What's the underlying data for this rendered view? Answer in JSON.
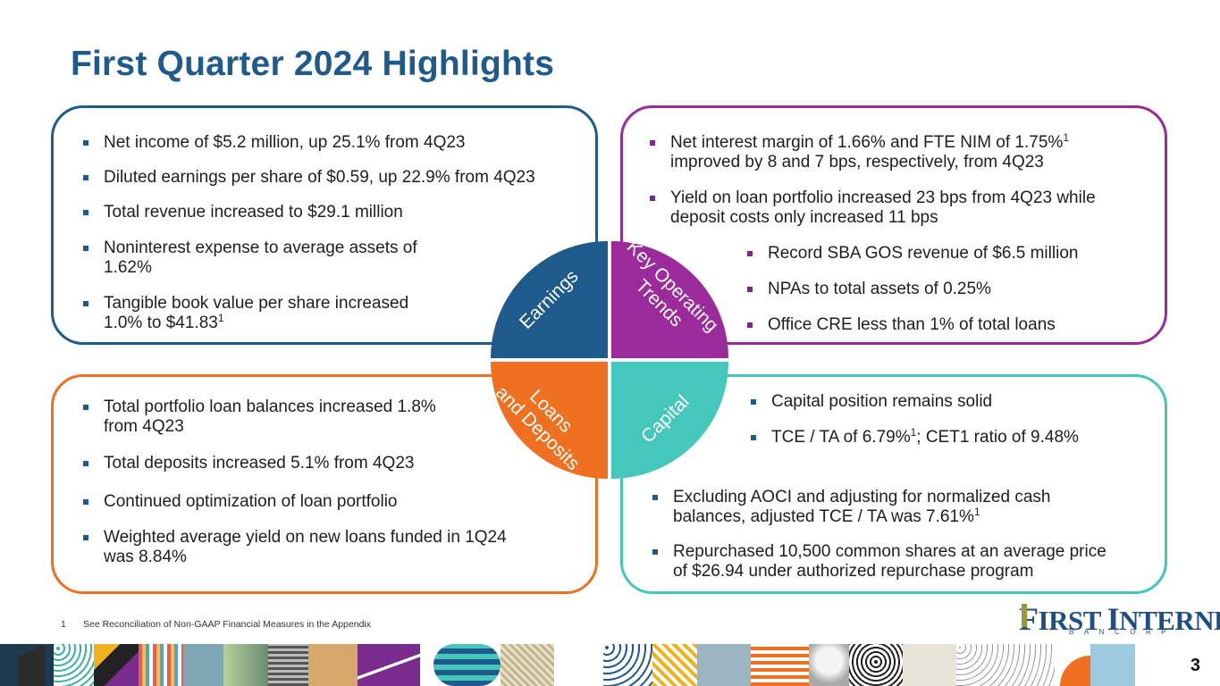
{
  "title": "First Quarter 2024 Highlights",
  "colors": {
    "navy": "#1f5a8c",
    "purple": "#9b2a9b",
    "orange": "#f07022",
    "teal": "#45c8bb"
  },
  "quadrants": {
    "earnings": "Earnings",
    "key_operating_trends": [
      "Key Operating",
      "Trends"
    ],
    "loans_and_deposits": [
      "Loans",
      "and Deposits"
    ],
    "capital": "Capital"
  },
  "earnings": {
    "b1": "Net income of $5.2 million, up 25.1% from 4Q23",
    "b2": "Diluted earnings per share of $0.59, up 22.9% from 4Q23",
    "b3": "Total revenue increased to $29.1 million",
    "b4_l1": "Noninterest expense to average assets of",
    "b4_l2": "1.62%",
    "b5_l1": "Tangible book value per share increased",
    "b5_l2": "1.0% to $41.83",
    "b5_sup": "1"
  },
  "key_trends": {
    "b1_l1": "Net interest margin of 1.66% and FTE NIM of 1.75%",
    "b1_sup": "1",
    "b1_l2": "improved by 8 and 7 bps, respectively, from 4Q23",
    "b2_l1": "Yield on loan portfolio increased 23 bps from 4Q23 while",
    "b2_l2": "deposit costs only increased 11 bps",
    "b3": "Record SBA GOS revenue of $6.5 million",
    "b4": "NPAs to total assets of 0.25%",
    "b5": "Office CRE less than 1% of total loans"
  },
  "loans": {
    "b1_l1": "Total portfolio loan balances increased 1.8%",
    "b1_l2": "from 4Q23",
    "b2": "Total deposits increased 5.1% from 4Q23",
    "b3": "Continued optimization of loan portfolio",
    "b4_l1": "Weighted average yield on new loans funded in 1Q24",
    "b4_l2": "was 8.84%"
  },
  "capital": {
    "b1": "Capital position remains solid",
    "b2_a": "TCE / TA of 6.79%",
    "b2_sup": "1",
    "b2_b": "; CET1 ratio of 9.48%",
    "b3_l1": "Excluding AOCI and adjusting for normalized cash",
    "b3_l2": "balances, adjusted TCE / TA was 7.61%",
    "b3_sup": "1",
    "b4_l1": "Repurchased 10,500 common shares at an average price",
    "b4_l2": "of $26.94 under authorized repurchase program"
  },
  "footnote": {
    "num": "1",
    "text": "See Reconciliation of Non-GAAP Financial Measures in the Appendix"
  },
  "logo": {
    "first_cap": "F",
    "first_rest": "IRST ",
    "internet_cap": "I",
    "internet_rest": "NTERNET",
    "sub": "BANCORP"
  },
  "page_number": "3"
}
